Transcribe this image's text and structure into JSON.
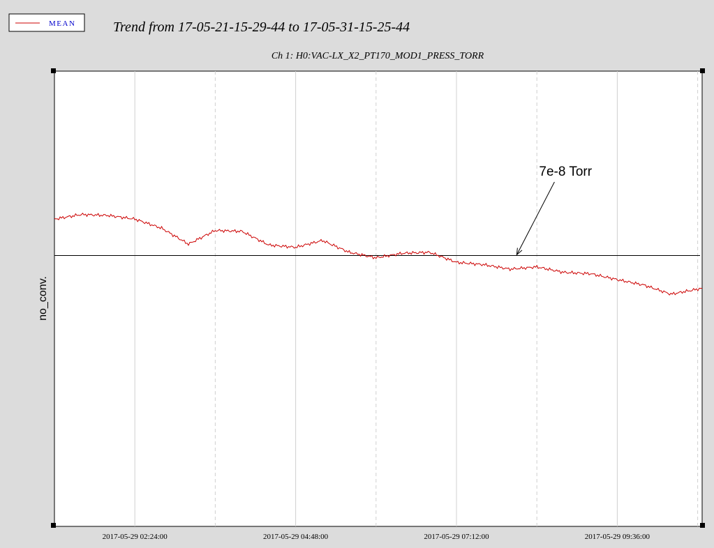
{
  "legend": {
    "label": "MEAN",
    "line_color": "#cc0000",
    "text_color": "#0000cc"
  },
  "title": "Trend from 17-05-21-15-29-44 to 17-05-31-15-25-44",
  "subtitle": "Ch 1: H0:VAC-LX_X2_PT170_MOD1_PRESS_TORR",
  "colors": {
    "background": "#dcdcdc",
    "plot_area": "#ffffff",
    "series": "#cc0000",
    "reference_line": "#000000",
    "grid": "#d0d0d0"
  },
  "chart_data": {
    "type": "line",
    "xlabel": "",
    "ylabel": "no_conv.",
    "x_ticks": [
      "2017-05-29 02:24:00",
      "2017-05-29 04:48:00",
      "2017-05-29 07:12:00",
      "2017-05-29 09:36:00"
    ],
    "xlim": [
      "2017-05-29 01:12:00",
      "2017-05-29 10:52:00"
    ],
    "ylim": [
      0,
      100
    ],
    "grid": true,
    "legend_placement": "top-left",
    "annotation": {
      "text": "7e-8 Torr",
      "points_to": [
        "2017-05-29 08:06:00",
        59.5
      ]
    },
    "reference_line": {
      "y": 59.5
    },
    "series": [
      {
        "name": "MEAN",
        "x": [
          "2017-05-29 01:12:00",
          "2017-05-29 01:36:00",
          "2017-05-29 02:00:00",
          "2017-05-29 02:24:00",
          "2017-05-29 02:48:00",
          "2017-05-29 03:12:00",
          "2017-05-29 03:36:00",
          "2017-05-29 04:00:00",
          "2017-05-29 04:24:00",
          "2017-05-29 04:48:00",
          "2017-05-29 05:12:00",
          "2017-05-29 05:36:00",
          "2017-05-29 06:00:00",
          "2017-05-29 06:24:00",
          "2017-05-29 06:48:00",
          "2017-05-29 07:12:00",
          "2017-05-29 07:36:00",
          "2017-05-29 08:00:00",
          "2017-05-29 08:24:00",
          "2017-05-29 08:48:00",
          "2017-05-29 09:12:00",
          "2017-05-29 09:36:00",
          "2017-05-29 10:00:00",
          "2017-05-29 10:24:00",
          "2017-05-29 10:52:00"
        ],
        "y": [
          67.5,
          68.5,
          68.3,
          67.5,
          65.5,
          62.0,
          65.0,
          64.8,
          61.8,
          61.3,
          62.8,
          60.2,
          59.0,
          60.0,
          60.2,
          58.0,
          57.5,
          56.5,
          57.0,
          55.8,
          55.5,
          54.2,
          53.0,
          51.0,
          52.3
        ]
      }
    ]
  }
}
